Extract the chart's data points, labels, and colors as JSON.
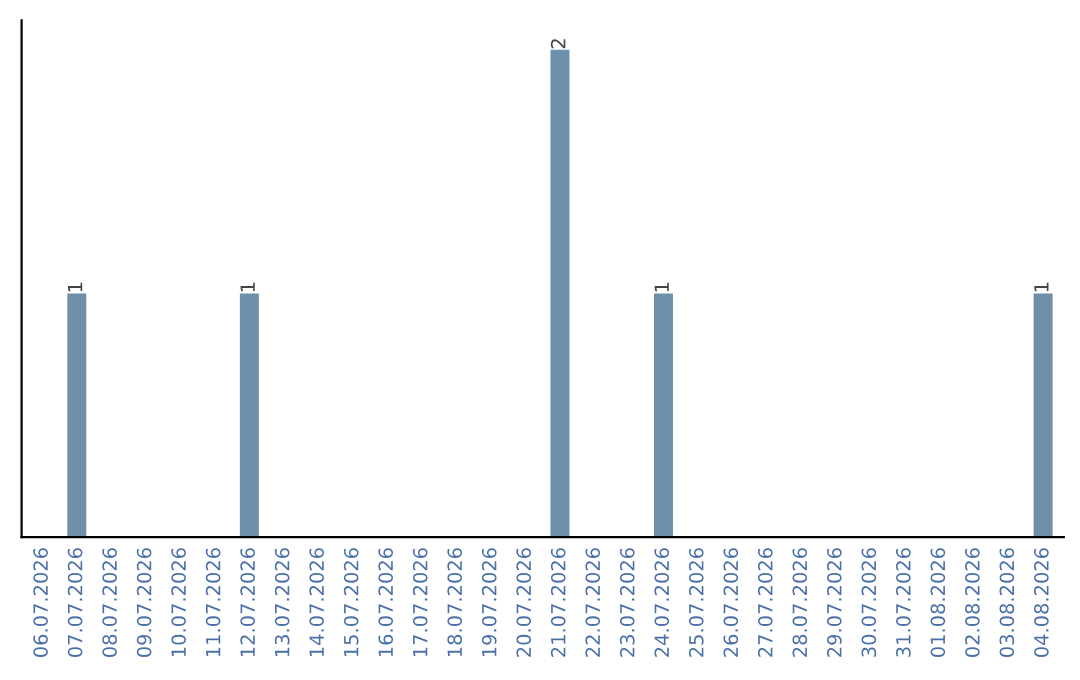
{
  "chart_data": {
    "type": "bar",
    "categories": [
      "06.07.2026",
      "07.07.2026",
      "08.07.2026",
      "09.07.2026",
      "10.07.2026",
      "11.07.2026",
      "12.07.2026",
      "13.07.2026",
      "14.07.2026",
      "15.07.2026",
      "16.07.2026",
      "17.07.2026",
      "18.07.2026",
      "19.07.2026",
      "20.07.2026",
      "21.07.2026",
      "22.07.2026",
      "23.07.2026",
      "24.07.2026",
      "25.07.2026",
      "26.07.2026",
      "27.07.2026",
      "28.07.2026",
      "29.07.2026",
      "30.07.2026",
      "31.07.2026",
      "01.08.2026",
      "02.08.2026",
      "03.08.2026",
      "04.08.2026"
    ],
    "values": [
      0,
      1,
      0,
      0,
      0,
      0,
      1,
      0,
      0,
      0,
      0,
      0,
      0,
      0,
      0,
      2,
      0,
      0,
      1,
      0,
      0,
      0,
      0,
      0,
      0,
      0,
      0,
      0,
      0,
      1
    ],
    "value_labels": [
      null,
      "1",
      null,
      null,
      null,
      null,
      "1",
      null,
      null,
      null,
      null,
      null,
      null,
      null,
      null,
      "2",
      null,
      null,
      "1",
      null,
      null,
      null,
      null,
      null,
      null,
      null,
      null,
      null,
      null,
      "1"
    ],
    "color": "#6e8faa",
    "tick_labels": "x"
  }
}
